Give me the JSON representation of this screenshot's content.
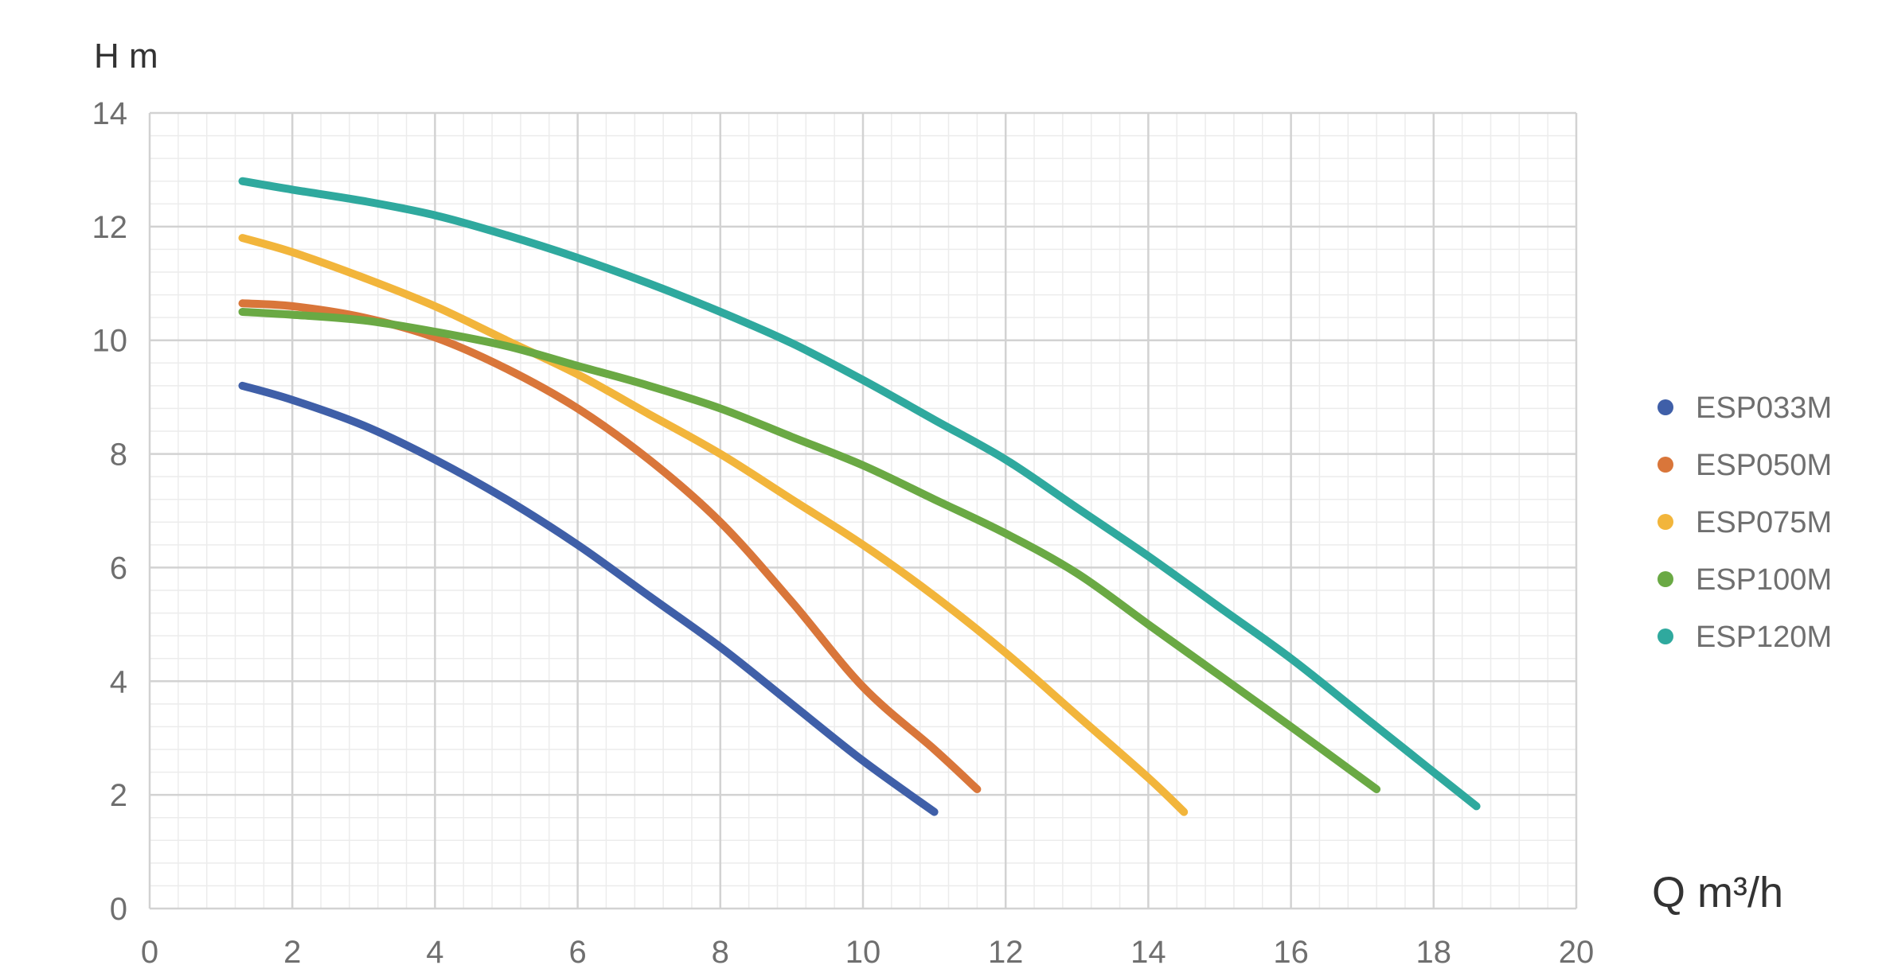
{
  "chart_data": {
    "type": "line",
    "title": "",
    "xlabel": "Q m³/h",
    "ylabel": "H m",
    "xlim": [
      0,
      20
    ],
    "ylim": [
      0,
      14
    ],
    "xticks": [
      0,
      2,
      4,
      6,
      8,
      10,
      12,
      14,
      16,
      18,
      20
    ],
    "yticks": [
      0,
      2,
      4,
      6,
      8,
      10,
      12,
      14
    ],
    "grid": true,
    "legend_position": "right",
    "series": [
      {
        "name": "ESP033M",
        "color": "#3f5fa8",
        "x": [
          1.3,
          2,
          3,
          4,
          5,
          6,
          7,
          8,
          9,
          10,
          11
        ],
        "y": [
          9.2,
          8.95,
          8.5,
          7.9,
          7.2,
          6.4,
          5.5,
          4.6,
          3.6,
          2.6,
          1.7
        ]
      },
      {
        "name": "ESP050M",
        "color": "#d9763a",
        "x": [
          1.3,
          2,
          3,
          4,
          5,
          6,
          7,
          8,
          9,
          10,
          11,
          11.6
        ],
        "y": [
          10.65,
          10.6,
          10.4,
          10.05,
          9.5,
          8.8,
          7.9,
          6.8,
          5.4,
          3.9,
          2.8,
          2.1
        ]
      },
      {
        "name": "ESP075M",
        "color": "#f2b53b",
        "x": [
          1.3,
          2,
          3,
          4,
          5,
          6,
          7,
          8,
          9,
          10,
          11,
          12,
          13,
          14,
          14.5
        ],
        "y": [
          11.8,
          11.55,
          11.1,
          10.6,
          10,
          9.4,
          8.7,
          8.0,
          7.2,
          6.4,
          5.5,
          4.5,
          3.4,
          2.3,
          1.7
        ]
      },
      {
        "name": "ESP100M",
        "color": "#6aa944",
        "x": [
          1.3,
          2,
          3,
          4,
          5,
          6,
          7,
          8,
          9,
          10,
          11,
          12,
          13,
          14,
          15,
          16,
          17.2
        ],
        "y": [
          10.5,
          10.45,
          10.35,
          10.15,
          9.9,
          9.55,
          9.2,
          8.8,
          8.3,
          7.8,
          7.2,
          6.6,
          5.9,
          5.0,
          4.1,
          3.2,
          2.1
        ]
      },
      {
        "name": "ESP120M",
        "color": "#2fa99e",
        "x": [
          1.3,
          2,
          3,
          4,
          5,
          6,
          7,
          8,
          9,
          10,
          11,
          12,
          13,
          14,
          15,
          16,
          17,
          18,
          18.6
        ],
        "y": [
          12.8,
          12.65,
          12.45,
          12.2,
          11.85,
          11.45,
          11.0,
          10.5,
          9.95,
          9.3,
          8.6,
          7.9,
          7.05,
          6.2,
          5.3,
          4.4,
          3.4,
          2.4,
          1.8
        ]
      }
    ]
  }
}
